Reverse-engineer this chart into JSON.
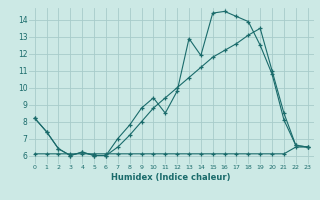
{
  "xlabel": "Humidex (Indice chaleur)",
  "bg_color": "#cce9e5",
  "grid_color": "#a8ccca",
  "line_color": "#1a6b6b",
  "xlim": [
    -0.5,
    23.5
  ],
  "ylim": [
    5.5,
    14.7
  ],
  "xticks": [
    0,
    1,
    2,
    3,
    4,
    5,
    6,
    7,
    8,
    9,
    10,
    11,
    12,
    13,
    14,
    15,
    16,
    17,
    18,
    19,
    20,
    21,
    22,
    23
  ],
  "yticks": [
    6,
    7,
    8,
    9,
    10,
    11,
    12,
    13,
    14
  ],
  "series1_x": [
    0,
    1,
    2,
    3,
    4,
    5,
    6,
    7,
    8,
    9,
    10,
    11,
    12,
    13,
    14,
    15,
    16,
    17,
    18,
    19,
    20,
    21,
    22,
    23
  ],
  "series1_y": [
    8.2,
    7.4,
    6.4,
    6.0,
    6.2,
    6.0,
    6.0,
    7.0,
    7.8,
    8.8,
    9.4,
    8.5,
    9.8,
    12.9,
    11.9,
    14.4,
    14.5,
    14.2,
    13.9,
    12.5,
    10.8,
    8.1,
    6.6,
    6.5
  ],
  "series2_x": [
    0,
    1,
    2,
    3,
    4,
    5,
    6,
    7,
    8,
    9,
    10,
    11,
    12,
    13,
    14,
    15,
    16,
    17,
    18,
    19,
    20,
    21,
    22,
    23
  ],
  "series2_y": [
    8.2,
    7.4,
    6.4,
    6.0,
    6.2,
    6.0,
    6.0,
    6.5,
    7.2,
    8.0,
    8.8,
    9.4,
    10.0,
    10.6,
    11.2,
    11.8,
    12.2,
    12.6,
    13.1,
    13.5,
    11.0,
    8.5,
    6.6,
    6.5
  ],
  "series3_x": [
    0,
    1,
    2,
    3,
    4,
    5,
    6,
    7,
    8,
    9,
    10,
    11,
    12,
    13,
    14,
    15,
    16,
    17,
    18,
    19,
    20,
    21,
    22,
    23
  ],
  "series3_y": [
    6.1,
    6.1,
    6.1,
    6.1,
    6.1,
    6.1,
    6.1,
    6.1,
    6.1,
    6.1,
    6.1,
    6.1,
    6.1,
    6.1,
    6.1,
    6.1,
    6.1,
    6.1,
    6.1,
    6.1,
    6.1,
    6.1,
    6.5,
    6.5
  ]
}
